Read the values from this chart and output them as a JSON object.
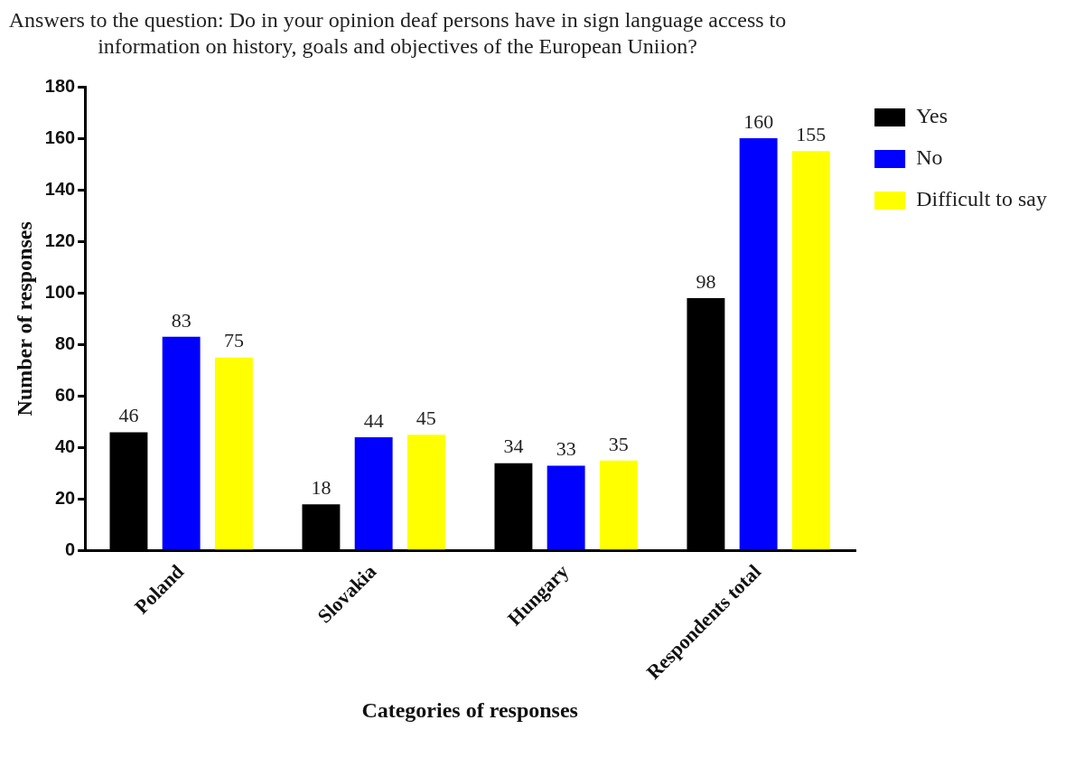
{
  "chart_data": {
    "type": "bar",
    "title": "Answers to the question: Do in your opinion deaf persons have in sign language access to information on history, goals and objectives of the European Uniion?",
    "xlabel": "Categories of responses",
    "ylabel": "Number of responses",
    "categories": [
      "Poland",
      "Slovakia",
      "Hungary",
      "Respondents total"
    ],
    "series": [
      {
        "name": "Yes",
        "color": "#000000",
        "values": [
          46,
          18,
          34,
          98
        ]
      },
      {
        "name": "No",
        "color": "#0000ff",
        "values": [
          83,
          44,
          33,
          160
        ]
      },
      {
        "name": "Difficult to say",
        "color": "#ffff00",
        "values": [
          75,
          45,
          35,
          155
        ]
      }
    ],
    "ylim": [
      0,
      180
    ],
    "yticks": [
      0,
      20,
      40,
      60,
      80,
      100,
      120,
      140,
      160,
      180
    ],
    "grid": false,
    "legend": "top right",
    "data_labels": true
  }
}
